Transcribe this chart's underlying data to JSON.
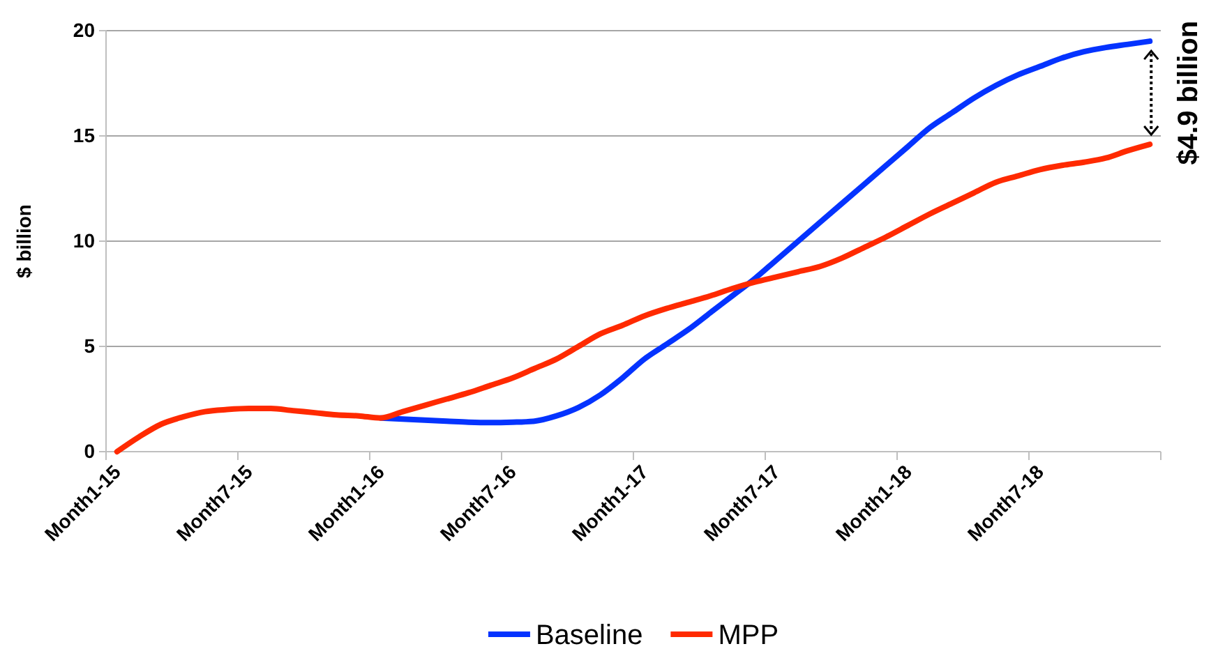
{
  "chart_data": {
    "type": "line",
    "ylabel": "$ billion",
    "categories": [
      "Month1-15",
      null,
      null,
      null,
      null,
      null,
      "Month7-15",
      null,
      null,
      null,
      null,
      null,
      "Month1-16",
      null,
      null,
      null,
      null,
      null,
      "Month7-16",
      null,
      null,
      null,
      null,
      null,
      "Month1-17",
      null,
      null,
      null,
      null,
      null,
      "Month7-17",
      null,
      null,
      null,
      null,
      null,
      "Month1-18",
      null,
      null,
      null,
      null,
      null,
      "Month7-18",
      null,
      null,
      null,
      null,
      null
    ],
    "series": [
      {
        "name": "Baseline",
        "color": "#0433ff",
        "values": [
          null,
          null,
          null,
          null,
          null,
          null,
          null,
          null,
          null,
          null,
          null,
          null,
          1.6,
          1.55,
          1.5,
          1.45,
          1.4,
          1.38,
          1.4,
          1.45,
          1.7,
          2.1,
          2.7,
          3.5,
          4.4,
          5.1,
          5.8,
          6.6,
          7.4,
          8.2,
          9.1,
          10.0,
          10.9,
          11.8,
          12.7,
          13.6,
          14.5,
          15.4,
          16.1,
          16.8,
          17.4,
          17.9,
          18.3,
          18.7,
          19.0,
          19.2,
          19.35,
          19.5
        ]
      },
      {
        "name": "MPP",
        "color": "#ff2a00",
        "values": [
          0,
          0.7,
          1.3,
          1.65,
          1.9,
          2.0,
          2.05,
          2.05,
          1.95,
          1.85,
          1.75,
          1.7,
          1.6,
          1.9,
          2.2,
          2.5,
          2.8,
          3.15,
          3.5,
          3.95,
          4.4,
          5.0,
          5.6,
          6.0,
          6.45,
          6.8,
          7.1,
          7.4,
          7.75,
          8.05,
          8.3,
          8.55,
          8.8,
          9.2,
          9.7,
          10.2,
          10.75,
          11.3,
          11.8,
          12.3,
          12.8,
          13.1,
          13.4,
          13.6,
          13.75,
          13.95,
          14.3,
          14.6
        ]
      }
    ],
    "ylim": [
      0,
      20
    ],
    "yticks": [
      0,
      5,
      10,
      15,
      20
    ],
    "grid": "y",
    "legend": "bottom",
    "annotations": [
      "$4.9 billion"
    ]
  }
}
